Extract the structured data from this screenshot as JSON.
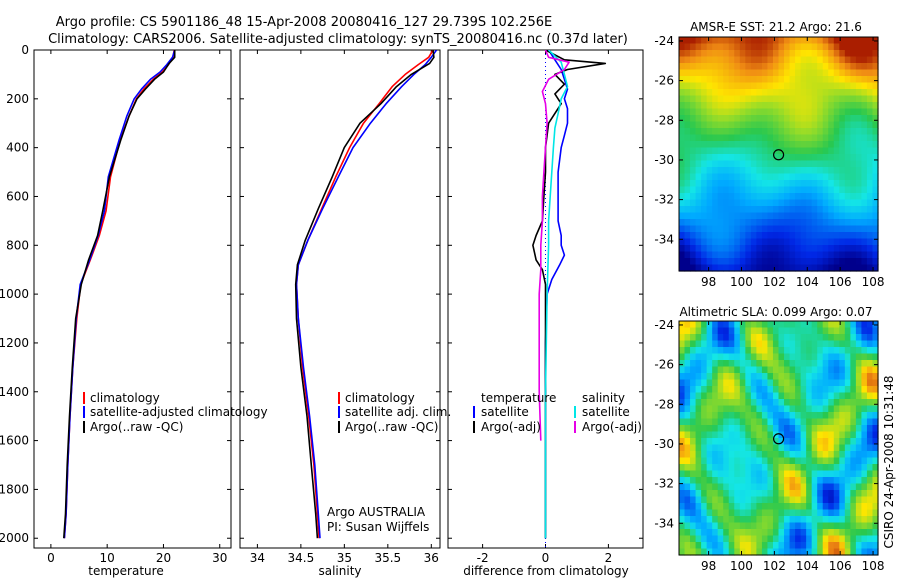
{
  "header": {
    "title_line1": "Argo profile: CS 5901186_48 15-Apr-2008 20080416_127 29.739S 102.256E",
    "title_line2": "Climatology: CARS2006. Satellite-adjusted climatology: synTS_20080416.nc (0.37d later)"
  },
  "side_label": "CSIRO 24-Apr-2008 10:31:48",
  "colors": {
    "climatology": "#ff0000",
    "satellite": "#0000ff",
    "argo": "#000000",
    "salinity_satellite": "#00e6e6",
    "salinity_argo": "#e600e6"
  },
  "chart_data": [
    {
      "type": "line",
      "id": "temperature",
      "xlabel": "temperature",
      "ylabel": "",
      "xlim": [
        -3,
        32
      ],
      "ylim": [
        2040,
        0
      ],
      "x_ticks": [
        0,
        10,
        20,
        30
      ],
      "y_ticks": [
        0,
        200,
        400,
        600,
        800,
        1000,
        1200,
        1400,
        1600,
        1800,
        2000
      ],
      "y_tick_labels": [
        "0",
        "200",
        "400",
        "600",
        "800",
        "1000",
        "1200",
        "1400",
        "1600",
        "1800",
        "2000"
      ],
      "legend": [
        "climatology",
        "satellite-adjusted climatology",
        "Argo(..raw -QC)"
      ],
      "series": [
        {
          "name": "climatology",
          "color": "#ff0000",
          "x": [
            21.9,
            21.7,
            20.9,
            19.8,
            18.2,
            16.5,
            15.2,
            13.9,
            12.3,
            10.6,
            9.8,
            8.6,
            7.0,
            5.3,
            4.6,
            3.9,
            3.4,
            3.0,
            2.7,
            2.4
          ],
          "y": [
            0,
            30,
            60,
            90,
            120,
            160,
            200,
            270,
            370,
            520,
            660,
            760,
            860,
            960,
            1100,
            1300,
            1500,
            1700,
            1900,
            2000
          ]
        },
        {
          "name": "satellite-adjusted climatology",
          "color": "#0000ff",
          "x": [
            22.0,
            21.6,
            20.6,
            19.4,
            17.7,
            16.1,
            14.8,
            13.5,
            12.1,
            10.2,
            9.5,
            8.4,
            6.9,
            5.2,
            4.5,
            3.9,
            3.4,
            3.0,
            2.7,
            2.4
          ],
          "y": [
            0,
            30,
            60,
            90,
            120,
            160,
            200,
            270,
            370,
            520,
            660,
            760,
            860,
            960,
            1100,
            1300,
            1500,
            1700,
            1900,
            2000
          ]
        },
        {
          "name": "Argo(..raw -QC)",
          "color": "#000000",
          "x": [
            22.0,
            22.0,
            21.0,
            20.0,
            18.4,
            16.8,
            15.3,
            13.9,
            12.4,
            10.4,
            9.2,
            8.3,
            6.7,
            5.4,
            4.4,
            3.8,
            3.3,
            2.9,
            2.6,
            2.3
          ],
          "y": [
            0,
            30,
            55,
            90,
            120,
            160,
            200,
            270,
            370,
            520,
            660,
            760,
            860,
            960,
            1100,
            1300,
            1500,
            1700,
            1900,
            2000
          ]
        }
      ]
    },
    {
      "type": "line",
      "id": "salinity",
      "xlabel": "salinity",
      "xlim": [
        33.8,
        36.1
      ],
      "ylim": [
        2040,
        0
      ],
      "x_ticks": [
        34,
        34.5,
        35,
        35.5,
        36
      ],
      "x_tick_labels": [
        "34",
        "34.5",
        "35",
        "35.5",
        "36"
      ],
      "legend": [
        "climatology",
        "satellite adj. clim.",
        "Argo(..raw -QC)"
      ],
      "annotations": [
        "Argo AUSTRALIA",
        "PI: Susan Wijffels"
      ],
      "series": [
        {
          "name": "climatology",
          "color": "#ff0000",
          "x": [
            36.02,
            35.97,
            35.85,
            35.7,
            35.55,
            35.4,
            35.22,
            35.06,
            34.9,
            34.74,
            34.58,
            34.47,
            34.45,
            34.47,
            34.52,
            34.59,
            34.65,
            34.69,
            34.71
          ],
          "y": [
            0,
            30,
            60,
            100,
            150,
            220,
            300,
            400,
            520,
            650,
            780,
            880,
            960,
            1100,
            1300,
            1500,
            1700,
            1900,
            2000
          ]
        },
        {
          "name": "satellite adj. clim.",
          "color": "#0000ff",
          "x": [
            36.06,
            36.0,
            35.93,
            35.8,
            35.66,
            35.48,
            35.3,
            35.1,
            34.93,
            34.75,
            34.58,
            34.47,
            34.45,
            34.47,
            34.53,
            34.6,
            34.66,
            34.7,
            34.72
          ],
          "y": [
            0,
            30,
            60,
            100,
            150,
            220,
            300,
            400,
            520,
            650,
            780,
            880,
            960,
            1100,
            1300,
            1500,
            1700,
            1900,
            2000
          ]
        },
        {
          "name": "Argo(..raw -QC)",
          "color": "#000000",
          "x": [
            36.02,
            36.03,
            35.98,
            35.77,
            35.6,
            35.42,
            35.18,
            35.0,
            34.86,
            34.7,
            34.55,
            34.46,
            34.44,
            34.45,
            34.5,
            34.57,
            34.62,
            34.67,
            34.69
          ],
          "y": [
            0,
            30,
            55,
            100,
            150,
            220,
            300,
            400,
            520,
            650,
            780,
            880,
            960,
            1100,
            1300,
            1500,
            1700,
            1900,
            2000
          ]
        }
      ]
    },
    {
      "type": "line",
      "id": "difference",
      "xlabel": "difference from climatology",
      "xlim": [
        -3.1,
        3.1
      ],
      "ylim": [
        2040,
        0
      ],
      "x_ticks": [
        -2,
        0,
        2
      ],
      "legend": {
        "temperature": {
          "heading": "temperature",
          "entries": [
            "satellite",
            "Argo(-adj)"
          ]
        },
        "salinity": {
          "heading": "salinity",
          "entries": [
            "satellite",
            "Argo(-adj)"
          ]
        }
      },
      "series": [
        {
          "name": "temperature satellite",
          "color": "#0000ff",
          "x": [
            0.1,
            0.3,
            0.5,
            0.6,
            0.7,
            0.6,
            0.7,
            0.7,
            0.6,
            0.5,
            0.4,
            0.4,
            0.4,
            0.5,
            0.5,
            0.6,
            0.45,
            0.2,
            0.05,
            0.0,
            0.0,
            0.0,
            0.0
          ],
          "y": [
            0,
            40,
            80,
            120,
            160,
            200,
            240,
            300,
            350,
            400,
            500,
            600,
            700,
            760,
            800,
            840,
            880,
            940,
            1000,
            1200,
            1500,
            1800,
            2000
          ]
        },
        {
          "name": "temperature Argo(-adj)",
          "color": "#000000",
          "x": [
            0.0,
            0.6,
            1.9,
            0.7,
            0.3,
            0.6,
            0.3,
            0.5,
            0.1,
            0.0,
            0.0,
            -0.05,
            -0.1,
            -0.3,
            -0.4,
            -0.3,
            -0.1,
            0.0,
            0.0,
            0.0,
            0.0
          ],
          "y": [
            0,
            40,
            55,
            80,
            100,
            140,
            180,
            220,
            300,
            400,
            500,
            600,
            700,
            760,
            800,
            860,
            900,
            960,
            1200,
            1600,
            2000
          ]
        },
        {
          "name": "salinity satellite",
          "color": "#00e6e6",
          "x": [
            0.1,
            0.5,
            0.6,
            0.7,
            0.5,
            0.4,
            0.3,
            0.25,
            0.2,
            0.15,
            0.1,
            0.1,
            0.05,
            0.0,
            0.0
          ],
          "y": [
            0,
            50,
            100,
            150,
            200,
            260,
            320,
            400,
            500,
            600,
            700,
            800,
            1000,
            1400,
            2000
          ]
        },
        {
          "name": "salinity Argo(-adj)",
          "color": "#e600e6",
          "x": [
            0.0,
            0.1,
            0.75,
            0.6,
            0.1,
            -0.1,
            0.0,
            0.05,
            0.0,
            -0.05,
            -0.1,
            -0.1,
            -0.15,
            -0.15,
            -0.2,
            -0.2,
            -0.15
          ],
          "y": [
            0,
            30,
            50,
            80,
            120,
            170,
            220,
            300,
            400,
            500,
            600,
            700,
            800,
            900,
            1000,
            1400,
            1600
          ]
        }
      ]
    },
    {
      "type": "heatmap",
      "id": "amsre_sst",
      "title": "AMSR-E SST: 21.2 Argo: 21.6",
      "xlim": [
        96.2,
        108.3
      ],
      "ylim": [
        -35.6,
        -23.8
      ],
      "x_ticks": [
        98,
        100,
        102,
        104,
        106,
        108
      ],
      "y_ticks": [
        -24,
        -26,
        -28,
        -30,
        -32,
        -34
      ],
      "marker": {
        "x": 102.256,
        "y": -29.739
      },
      "value_range": [
        17,
        26
      ]
    },
    {
      "type": "heatmap",
      "id": "altimetric_sla",
      "title": "Altimetric SLA: 0.099 Argo: 0.07",
      "xlim": [
        96.2,
        108.3
      ],
      "ylim": [
        -35.6,
        -23.8
      ],
      "x_ticks": [
        98,
        100,
        102,
        104,
        106,
        108
      ],
      "y_ticks": [
        -24,
        -26,
        -28,
        -30,
        -32,
        -34
      ],
      "marker": {
        "x": 102.256,
        "y": -29.739
      },
      "value_range": [
        -0.3,
        0.3
      ]
    }
  ]
}
